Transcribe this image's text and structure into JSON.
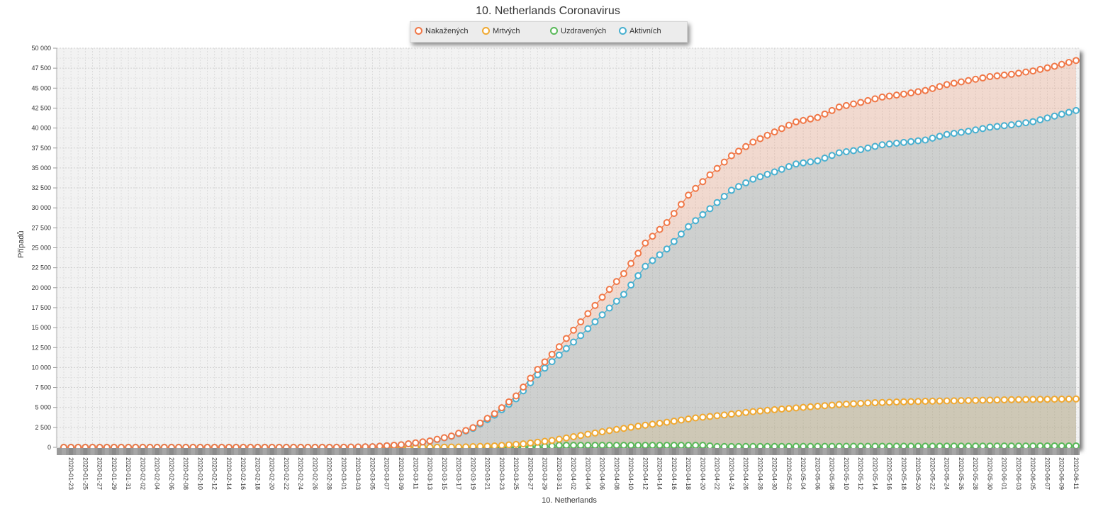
{
  "chart_data": {
    "type": "area",
    "title": "10. Netherlands Coronavirus",
    "xlabel": "10. Netherlands",
    "ylabel": "Případů",
    "ylim": [
      0,
      50000
    ],
    "yticks": [
      "0",
      "2 500",
      "5 000",
      "7 500",
      "10 000",
      "12 500",
      "15 000",
      "17 500",
      "20 000",
      "22 500",
      "25 000",
      "27 500",
      "30 000",
      "32 500",
      "35 000",
      "37 500",
      "40 000",
      "42 500",
      "45 000",
      "47 500",
      "50 000"
    ],
    "grid": true,
    "legend_position": "top-center",
    "x_start": "2020-01-22",
    "x_end": "2020-06-11",
    "x_tick_step_days": 2,
    "x_tick_start": "2020-01-23",
    "series": [
      {
        "name": "Nakažených",
        "color": "#f07848",
        "keypoints": [
          [
            "2020-01-22",
            0
          ],
          [
            "2020-02-26",
            0
          ],
          [
            "2020-03-01",
            10
          ],
          [
            "2020-03-05",
            82
          ],
          [
            "2020-03-09",
            321
          ],
          [
            "2020-03-13",
            804
          ],
          [
            "2020-03-16",
            1413
          ],
          [
            "2020-03-19",
            2460
          ],
          [
            "2020-03-22",
            4216
          ],
          [
            "2020-03-25",
            6440
          ],
          [
            "2020-03-28",
            9762
          ],
          [
            "2020-03-31",
            12595
          ],
          [
            "2020-04-03",
            15723
          ],
          [
            "2020-04-06",
            18803
          ],
          [
            "2020-04-09",
            21762
          ],
          [
            "2020-04-12",
            25587
          ],
          [
            "2020-04-15",
            28153
          ],
          [
            "2020-04-18",
            31589
          ],
          [
            "2020-04-21",
            34134
          ],
          [
            "2020-04-24",
            36535
          ],
          [
            "2020-04-27",
            38245
          ],
          [
            "2020-04-30",
            39512
          ],
          [
            "2020-05-03",
            40770
          ],
          [
            "2020-05-06",
            41319
          ],
          [
            "2020-05-09",
            42627
          ],
          [
            "2020-05-12",
            43211
          ],
          [
            "2020-05-15",
            43880
          ],
          [
            "2020-05-18",
            44249
          ],
          [
            "2020-05-21",
            44700
          ],
          [
            "2020-05-24",
            45445
          ],
          [
            "2020-05-27",
            45950
          ],
          [
            "2020-05-30",
            46442
          ],
          [
            "2020-06-02",
            46733
          ],
          [
            "2020-06-05",
            47152
          ],
          [
            "2020-06-08",
            47739
          ],
          [
            "2020-06-11",
            48461
          ]
        ]
      },
      {
        "name": "Mrtvých",
        "color": "#f0a830",
        "keypoints": [
          [
            "2020-01-22",
            0
          ],
          [
            "2020-03-10",
            4
          ],
          [
            "2020-03-14",
            12
          ],
          [
            "2020-03-18",
            58
          ],
          [
            "2020-03-22",
            179
          ],
          [
            "2020-03-26",
            435
          ],
          [
            "2020-03-30",
            864
          ],
          [
            "2020-04-03",
            1490
          ],
          [
            "2020-04-07",
            2101
          ],
          [
            "2020-04-11",
            2653
          ],
          [
            "2020-04-15",
            3145
          ],
          [
            "2020-04-19",
            3684
          ],
          [
            "2020-04-23",
            4054
          ],
          [
            "2020-04-27",
            4475
          ],
          [
            "2020-05-01",
            4795
          ],
          [
            "2020-05-05",
            5082
          ],
          [
            "2020-05-09",
            5359
          ],
          [
            "2020-05-13",
            5562
          ],
          [
            "2020-05-17",
            5680
          ],
          [
            "2020-05-21",
            5775
          ],
          [
            "2020-05-25",
            5830
          ],
          [
            "2020-05-29",
            5903
          ],
          [
            "2020-06-02",
            5967
          ],
          [
            "2020-06-06",
            6013
          ],
          [
            "2020-06-11",
            6059
          ]
        ]
      },
      {
        "name": "Uzdravených",
        "color": "#58b858",
        "keypoints": [
          [
            "2020-01-22",
            0
          ],
          [
            "2020-03-15",
            2
          ],
          [
            "2020-03-20",
            3
          ],
          [
            "2020-03-25",
            3
          ],
          [
            "2020-03-28",
            3
          ],
          [
            "2020-03-31",
            250
          ],
          [
            "2020-04-03",
            250
          ],
          [
            "2020-04-06",
            250
          ],
          [
            "2020-04-10",
            250
          ],
          [
            "2020-04-14",
            250
          ],
          [
            "2020-04-18",
            250
          ],
          [
            "2020-04-20",
            250
          ],
          [
            "2020-04-22",
            100
          ],
          [
            "2020-06-11",
            180
          ]
        ]
      },
      {
        "name": "Aktivních",
        "color": "#48b0d0",
        "keypoints": [
          [
            "2020-01-22",
            0
          ],
          [
            "2020-02-26",
            0
          ],
          [
            "2020-03-01",
            10
          ],
          [
            "2020-03-05",
            82
          ],
          [
            "2020-03-09",
            317
          ],
          [
            "2020-03-13",
            790
          ],
          [
            "2020-03-16",
            1390
          ],
          [
            "2020-03-19",
            2380
          ],
          [
            "2020-03-22",
            4030
          ],
          [
            "2020-03-25",
            6080
          ],
          [
            "2020-03-28",
            9100
          ],
          [
            "2020-03-31",
            11560
          ],
          [
            "2020-04-03",
            14000
          ],
          [
            "2020-04-06",
            16600
          ],
          [
            "2020-04-09",
            19160
          ],
          [
            "2020-04-12",
            22680
          ],
          [
            "2020-04-15",
            24850
          ],
          [
            "2020-04-18",
            27650
          ],
          [
            "2020-04-21",
            29900
          ],
          [
            "2020-04-24",
            32200
          ],
          [
            "2020-04-27",
            33600
          ],
          [
            "2020-04-30",
            34500
          ],
          [
            "2020-05-03",
            35500
          ],
          [
            "2020-05-06",
            35900
          ],
          [
            "2020-05-09",
            36900
          ],
          [
            "2020-05-12",
            37300
          ],
          [
            "2020-05-15",
            37900
          ],
          [
            "2020-05-18",
            38200
          ],
          [
            "2020-05-21",
            38500
          ],
          [
            "2020-05-24",
            39200
          ],
          [
            "2020-05-27",
            39600
          ],
          [
            "2020-05-30",
            40100
          ],
          [
            "2020-06-02",
            40400
          ],
          [
            "2020-06-05",
            40800
          ],
          [
            "2020-06-08",
            41500
          ],
          [
            "2020-06-11",
            42200
          ]
        ]
      }
    ]
  }
}
